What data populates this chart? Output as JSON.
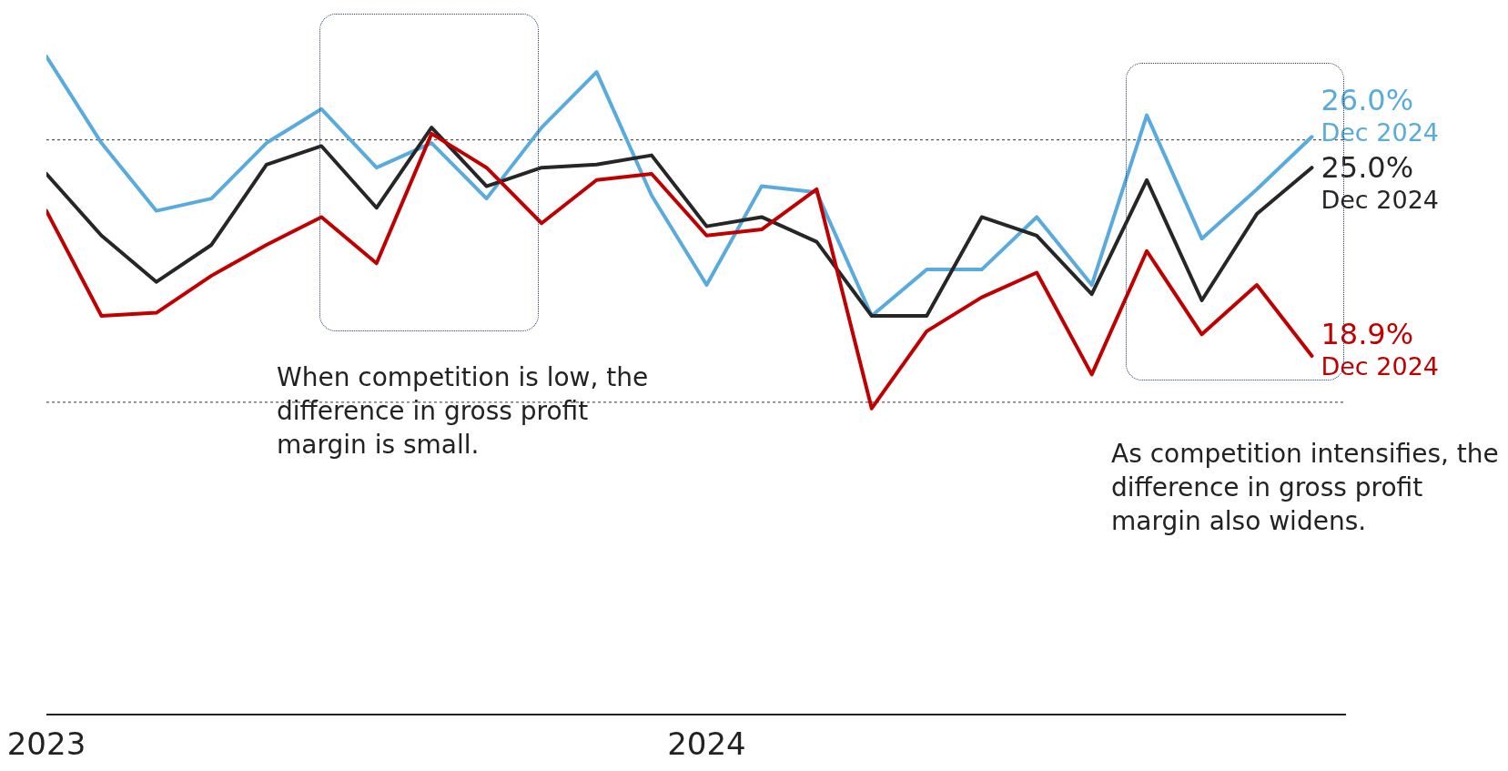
{
  "chart_data": {
    "type": "line",
    "categories": [
      "2023",
      null,
      null,
      null,
      null,
      null,
      null,
      null,
      null,
      null,
      null,
      null,
      "2024",
      null,
      null,
      null,
      null,
      null,
      null,
      null,
      null,
      null,
      null,
      null
    ],
    "tick_labels": "x",
    "marker": "none",
    "line_style": "solid",
    "series": [
      {
        "color": "#5aabdd",
        "values": [
          28.6,
          25.8,
          23.6,
          24.0,
          25.8,
          26.9,
          25.0,
          25.8,
          24.0,
          26.3,
          28.1,
          24.1,
          21.2,
          24.4,
          24.2,
          20.2,
          21.7,
          21.7,
          23.4,
          21.2,
          26.7,
          22.7,
          24.3,
          26.0
        ],
        "value_labels": [
          null,
          null,
          null,
          null,
          null,
          null,
          null,
          null,
          null,
          null,
          null,
          null,
          null,
          null,
          null,
          null,
          null,
          null,
          null,
          null,
          null,
          null,
          null,
          "26.0%"
        ]
      },
      {
        "color": "#262626",
        "values": [
          24.8,
          22.8,
          21.3,
          22.5,
          25.1,
          25.7,
          23.7,
          26.3,
          24.4,
          25.0,
          25.1,
          25.4,
          23.1,
          23.4,
          22.6,
          20.2,
          20.2,
          23.4,
          22.8,
          20.9,
          24.6,
          20.7,
          23.5,
          25.0
        ],
        "value_labels": [
          null,
          null,
          null,
          null,
          null,
          null,
          null,
          null,
          null,
          null,
          null,
          null,
          null,
          null,
          null,
          null,
          null,
          null,
          null,
          null,
          null,
          null,
          null,
          "25.0%"
        ]
      },
      {
        "color": "#c00000",
        "values": [
          23.6,
          20.2,
          20.3,
          21.5,
          22.5,
          23.4,
          21.9,
          26.1,
          25.0,
          23.2,
          24.6,
          24.8,
          22.8,
          23.0,
          24.3,
          17.2,
          19.7,
          20.8,
          21.6,
          18.3,
          22.3,
          19.6,
          21.2,
          18.9
        ],
        "value_labels": [
          null,
          null,
          null,
          null,
          null,
          null,
          null,
          null,
          null,
          null,
          null,
          null,
          null,
          null,
          null,
          null,
          null,
          null,
          null,
          null,
          null,
          null,
          null,
          "18.9%"
        ]
      }
    ],
    "ref_lines": [
      {
        "axis": "y",
        "value": 25.9,
        "color": "#333333",
        "line_style": "dotted"
      },
      {
        "axis": "y",
        "value": 17.4,
        "color": "#333333",
        "line_style": "dotted"
      }
    ],
    "annotations": [
      "When competition is low, the difference in gross profit margin is small.",
      "As competition intensifies, the difference in gross profit margin also widens.",
      "Dec 2024",
      "Dec 2024",
      "Dec 2024"
    ]
  }
}
